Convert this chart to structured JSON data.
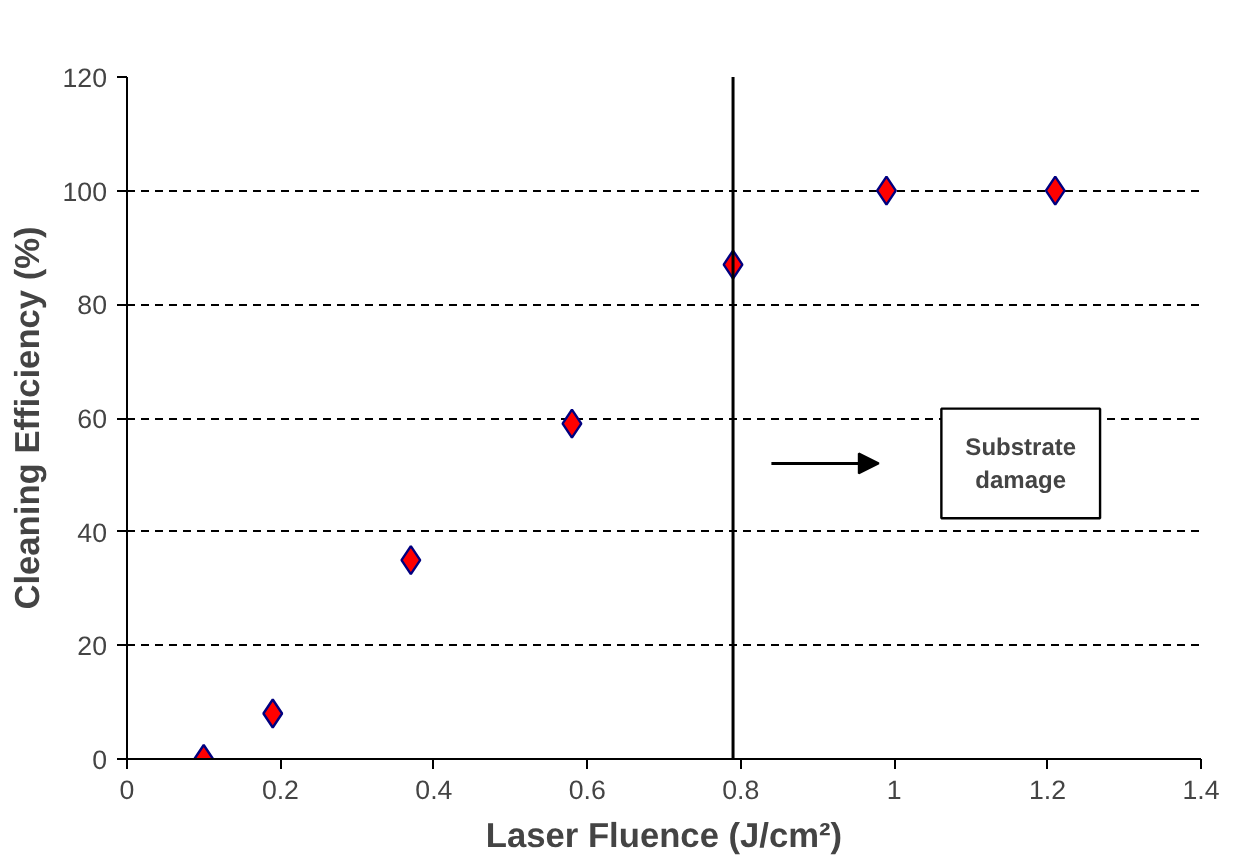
{
  "chart_data": {
    "type": "scatter",
    "xlabel": "Laser Fluence (J/cm²)",
    "ylabel": "Cleaning Efficiency (%)",
    "x": [
      0.1,
      0.19,
      0.37,
      0.58,
      0.79,
      0.99,
      1.21
    ],
    "series": [
      {
        "color": "#ff0000",
        "values": [
          0,
          8,
          35,
          59,
          87,
          100,
          100
        ]
      }
    ],
    "marker": "diamond",
    "xlim": [
      0,
      1.4
    ],
    "ylim": [
      0,
      120
    ],
    "xticks": [
      0,
      0.2,
      0.4,
      0.6,
      0.8,
      1,
      1.2,
      1.4
    ],
    "yticks": [
      0,
      20,
      40,
      60,
      80,
      100,
      120
    ],
    "grid": "y",
    "ref_lines": [
      {
        "axis": "x",
        "value": 0.79,
        "color": "#000000",
        "line_style": "solid"
      }
    ],
    "annotations": [
      "Substrate damage"
    ]
  }
}
